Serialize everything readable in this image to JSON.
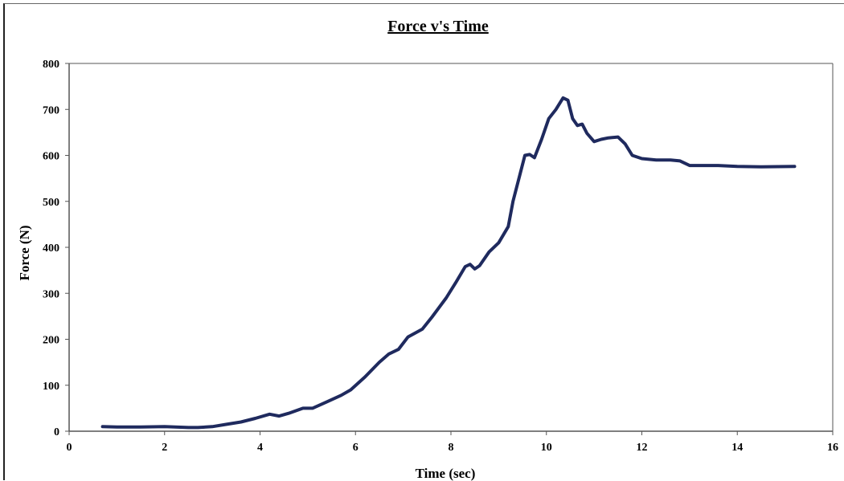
{
  "chart_data": {
    "type": "line",
    "title": "Force v's Time",
    "xlabel": "Time (sec)",
    "ylabel": "Force (N)",
    "xlim": [
      0,
      16
    ],
    "ylim": [
      0,
      800
    ],
    "xticks": [
      "0",
      "2",
      "4",
      "6",
      "8",
      "10",
      "12",
      "14",
      "16"
    ],
    "yticks": [
      "0",
      "100",
      "200",
      "300",
      "400",
      "500",
      "600",
      "700",
      "800"
    ],
    "grid": false,
    "legend": "none",
    "line_color": "#1f2a5e",
    "series": [
      {
        "x": [
          0.7,
          1.0,
          1.5,
          2.0,
          2.5,
          2.7,
          3.0,
          3.3,
          3.6,
          3.9,
          4.2,
          4.4,
          4.6,
          4.9,
          5.1,
          5.4,
          5.7,
          5.9,
          6.2,
          6.5,
          6.7,
          6.9,
          7.1,
          7.4,
          7.6,
          7.9,
          8.1,
          8.3,
          8.4,
          8.5,
          8.6,
          8.8,
          9.0,
          9.2,
          9.3,
          9.45,
          9.55,
          9.65,
          9.75,
          9.9,
          10.05,
          10.2,
          10.35,
          10.45,
          10.55,
          10.65,
          10.75,
          10.85,
          11.0,
          11.15,
          11.3,
          11.5,
          11.65,
          11.8,
          12.0,
          12.3,
          12.6,
          12.8,
          13.0,
          13.3,
          13.6,
          14.0,
          14.5,
          15.2
        ],
        "y": [
          10,
          9,
          9,
          10,
          8,
          8,
          10,
          15,
          20,
          28,
          37,
          33,
          39,
          50,
          50,
          64,
          78,
          90,
          118,
          150,
          168,
          178,
          205,
          222,
          248,
          290,
          323,
          358,
          363,
          353,
          360,
          390,
          410,
          445,
          500,
          560,
          600,
          602,
          595,
          635,
          680,
          700,
          725,
          720,
          680,
          665,
          668,
          648,
          630,
          635,
          638,
          640,
          625,
          600,
          593,
          590,
          590,
          588,
          578,
          578,
          578,
          576,
          575,
          576
        ]
      }
    ]
  }
}
